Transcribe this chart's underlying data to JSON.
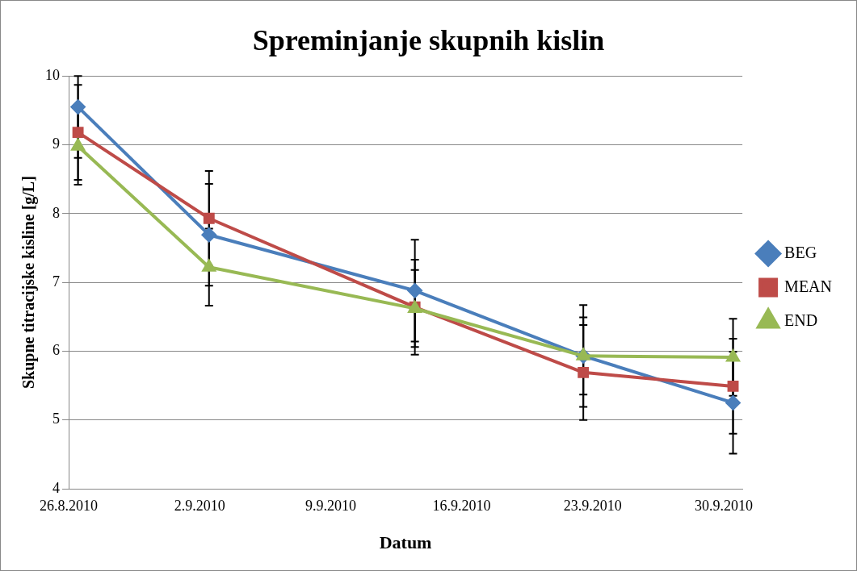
{
  "chart_data": {
    "type": "line",
    "title": "Spreminjanje skupnih kislin",
    "xlabel": "Datum",
    "ylabel": "Skupne titracijske kisline [g/L]",
    "x": [
      "2010-08-26T12:00",
      "2010-09-02T12:00",
      "2010-09-13T12:00",
      "2010-09-22T12:00",
      "2010-09-30T12:00"
    ],
    "series": [
      {
        "name": "BEG",
        "color": "#4a7ebb",
        "marker": "diamond",
        "values": [
          9.55,
          7.69,
          6.88,
          5.93,
          5.25
        ],
        "errors": [
          [
            8.81,
            10
          ],
          0.74,
          0.74,
          0.74,
          0.74
        ]
      },
      {
        "name": "MEAN",
        "color": "#be4b48",
        "marker": "square",
        "values": [
          9.18,
          7.93,
          6.64,
          5.69,
          5.49
        ],
        "errors": [
          0.69,
          0.69,
          0.69,
          0.69,
          0.69
        ]
      },
      {
        "name": "END",
        "color": "#98b954",
        "marker": "triangle",
        "values": [
          8.98,
          7.22,
          6.62,
          5.93,
          5.91
        ],
        "errors": [
          0.56,
          0.56,
          0.56,
          0.56,
          0.56
        ]
      }
    ],
    "xlim": [
      "2010-08-26",
      "2010-10-01"
    ],
    "xticks": [
      {
        "value": "2010-08-26",
        "label": "26.8.2010"
      },
      {
        "value": "2010-09-02",
        "label": "2.9.2010"
      },
      {
        "value": "2010-09-09",
        "label": "9.9.2010"
      },
      {
        "value": "2010-09-16",
        "label": "16.9.2010"
      },
      {
        "value": "2010-09-23",
        "label": "23.9.2010"
      },
      {
        "value": "2010-09-30",
        "label": "30.9.2010"
      }
    ],
    "ylim": [
      4,
      10
    ],
    "yticks": [
      4,
      5,
      6,
      7,
      8,
      9,
      10
    ],
    "grid": "y",
    "legend": "right",
    "line_style": "solid"
  }
}
